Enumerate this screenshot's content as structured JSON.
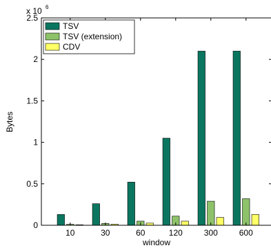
{
  "chart_data": {
    "type": "bar",
    "xlabel": "window",
    "ylabel": "Bytes",
    "scale_label": "x 10",
    "scale_exponent": "6",
    "categories": [
      "10",
      "30",
      "60",
      "120",
      "300",
      "600"
    ],
    "ylim": [
      0,
      2.5
    ],
    "yticks": [
      0,
      0.5,
      1,
      1.5,
      2,
      2.5
    ],
    "ytick_labels": [
      "0",
      "0.5",
      "1",
      "1.5",
      "2",
      "2.5"
    ],
    "legend_position": "top-left",
    "series": [
      {
        "name": "TSV",
        "color": "#0b7660",
        "values": [
          0.13,
          0.26,
          0.52,
          1.05,
          2.1,
          2.1
        ]
      },
      {
        "name": "TSV (extension)",
        "color": "#8dc26a",
        "values": [
          0.012,
          0.022,
          0.05,
          0.11,
          0.29,
          0.32
        ]
      },
      {
        "name": "CDV",
        "color": "#ffff66",
        "values": [
          0.006,
          0.013,
          0.026,
          0.05,
          0.095,
          0.13
        ]
      }
    ]
  }
}
